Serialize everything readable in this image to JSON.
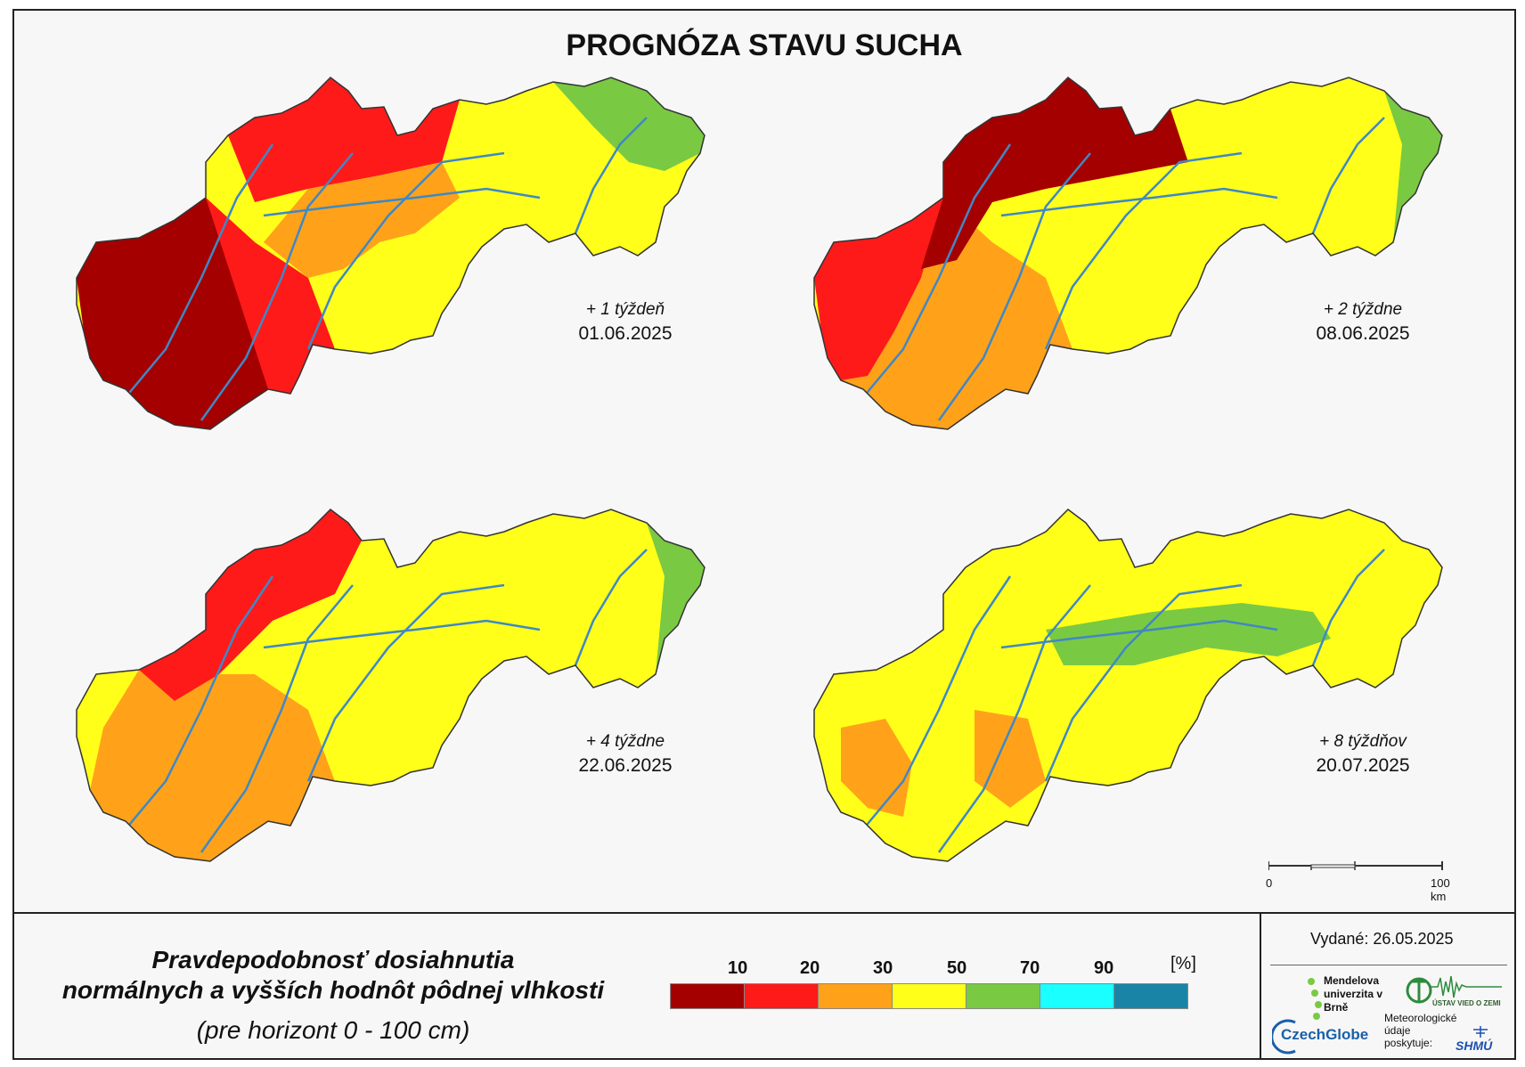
{
  "title": "PROGNÓZA STAVU SUCHA",
  "maps": [
    {
      "week_label": "+ 1 týždeň",
      "date": "01.06.2025"
    },
    {
      "week_label": "+ 2 týždne",
      "date": "08.06.2025"
    },
    {
      "week_label": "+ 4 týždne",
      "date": "22.06.2025"
    },
    {
      "week_label": "+ 8 týždňov",
      "date": "20.07.2025"
    }
  ],
  "legend": {
    "title_line1": "Pravdepodobnosť dosiahnutia",
    "title_line2": "normálnych a vyšších hodnôt pôdnej vlhkosti",
    "subtitle": "(pre horizont 0 - 100 cm)",
    "thresholds": [
      "10",
      "20",
      "30",
      "50",
      "70",
      "90"
    ],
    "unit": "[%]",
    "colors": [
      "#a50000",
      "#ff1a1a",
      "#ffa21a",
      "#ffff1a",
      "#7ac943",
      "#1affff",
      "#1a84a6"
    ]
  },
  "issued": {
    "label": "Vydané:",
    "date": "26.05.2025"
  },
  "scalebar": {
    "start": "0",
    "end": "100 km"
  },
  "logos": {
    "mendel": "Mendelova univerzita v Brně",
    "czechglobe": "CzechGlobe",
    "uvz": "ÚSTAV VIED O ZEMI",
    "meteo": "Meteorologické údaje poskytuje:",
    "shmu": "SHMÚ"
  },
  "colors": {
    "river": "#3f88c5",
    "border": "#333333"
  }
}
